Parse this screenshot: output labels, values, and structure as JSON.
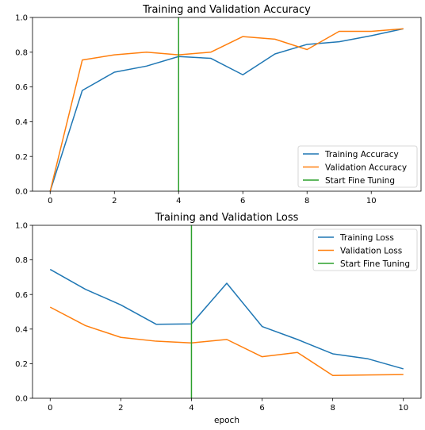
{
  "chart_data": [
    {
      "type": "line",
      "title": "Training and Validation Accuracy",
      "xlabel": "",
      "ylabel": "",
      "xlim": [
        -0.55,
        11.55
      ],
      "ylim": [
        0,
        1
      ],
      "xticks": [
        0,
        2,
        4,
        6,
        8,
        10
      ],
      "yticks": [
        0.0,
        0.2,
        0.4,
        0.6,
        0.8,
        1.0
      ],
      "xtick_labels": [
        "0",
        "2",
        "4",
        "6",
        "8",
        "10"
      ],
      "ytick_labels": [
        "0.0",
        "0.2",
        "0.4",
        "0.6",
        "0.8",
        "1.0"
      ],
      "legend_placement": "lower-right",
      "series": [
        {
          "name": "Training Accuracy",
          "color": "#1f77b4",
          "x": [
            0,
            1,
            2,
            3,
            4,
            5,
            6,
            7,
            8,
            9,
            10,
            11
          ],
          "y": [
            0.0,
            0.58,
            0.685,
            0.72,
            0.775,
            0.765,
            0.67,
            0.79,
            0.845,
            0.86,
            0.895,
            0.935
          ]
        },
        {
          "name": "Validation Accuracy",
          "color": "#ff7f0e",
          "x": [
            0,
            1,
            2,
            3,
            4,
            5,
            6,
            7,
            8,
            9,
            10,
            11
          ],
          "y": [
            0.0,
            0.755,
            0.785,
            0.8,
            0.785,
            0.8,
            0.89,
            0.875,
            0.815,
            0.92,
            0.92,
            0.935
          ]
        },
        {
          "name": "Start Fine Tuning",
          "color": "#2ca02c",
          "x": [
            4,
            4
          ],
          "y": [
            0,
            1
          ]
        }
      ]
    },
    {
      "type": "line",
      "title": "Training and Validation Loss",
      "xlabel": "epoch",
      "ylabel": "",
      "xlim": [
        -0.5,
        10.5
      ],
      "ylim": [
        0,
        1
      ],
      "xticks": [
        0,
        2,
        4,
        6,
        8,
        10
      ],
      "yticks": [
        0.0,
        0.2,
        0.4,
        0.6,
        0.8,
        1.0
      ],
      "xtick_labels": [
        "0",
        "2",
        "4",
        "6",
        "8",
        "10"
      ],
      "ytick_labels": [
        "0.0",
        "0.2",
        "0.4",
        "0.6",
        "0.8",
        "1.0"
      ],
      "legend_placement": "upper-right",
      "series": [
        {
          "name": "Training Loss",
          "color": "#1f77b4",
          "x": [
            0,
            1,
            2,
            3,
            4,
            5,
            6,
            7,
            8,
            9,
            10
          ],
          "y": [
            0.745,
            0.63,
            0.54,
            0.428,
            0.43,
            0.665,
            0.415,
            0.34,
            0.257,
            0.228,
            0.17
          ]
        },
        {
          "name": "Validation Loss",
          "color": "#ff7f0e",
          "x": [
            0,
            1,
            2,
            3,
            4,
            5,
            6,
            7,
            8,
            9,
            10
          ],
          "y": [
            0.527,
            0.42,
            0.352,
            0.33,
            0.32,
            0.34,
            0.24,
            0.265,
            0.132,
            0.135,
            0.137
          ]
        },
        {
          "name": "Start Fine Tuning",
          "color": "#2ca02c",
          "x": [
            4,
            4
          ],
          "y": [
            0,
            1
          ]
        }
      ]
    }
  ]
}
